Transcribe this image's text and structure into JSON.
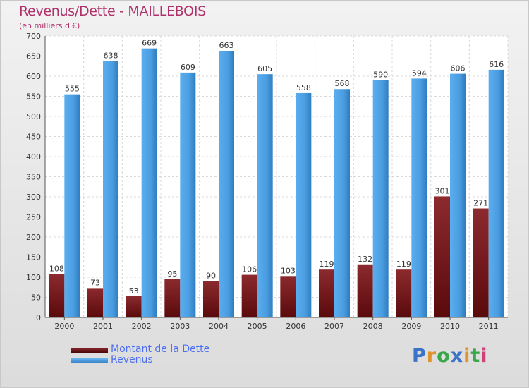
{
  "title": "Revenus/Dette - MAILLEBOIS",
  "subtitle": "(en milliers d'€)",
  "logo": {
    "text": "Proxiti",
    "colors": [
      "#3a73c8",
      "#e0922e",
      "#3aa84a",
      "#3a73c8",
      "#e0922e",
      "#3aa84a",
      "#d0407a"
    ]
  },
  "chart_data": {
    "type": "bar",
    "title": "Revenus/Dette - MAILLEBOIS",
    "subtitle": "(en milliers d'€)",
    "categories": [
      "2000",
      "2001",
      "2002",
      "2003",
      "2004",
      "2005",
      "2006",
      "2007",
      "2008",
      "2009",
      "2010",
      "2011"
    ],
    "series": [
      {
        "name": "Montant de la Dette",
        "color": "#7a1418",
        "values": [
          108,
          73,
          53,
          95,
          90,
          106,
          103,
          119,
          132,
          119,
          301,
          271
        ]
      },
      {
        "name": "Revenus",
        "color": "#4a9de0",
        "values": [
          555,
          638,
          669,
          609,
          663,
          605,
          558,
          568,
          590,
          594,
          606,
          616
        ]
      }
    ],
    "ylim": [
      0,
      700
    ],
    "yticks": [
      0,
      50,
      100,
      150,
      200,
      250,
      300,
      350,
      400,
      450,
      500,
      550,
      600,
      650,
      700
    ],
    "grid": true,
    "legend_position": "bottom-left"
  }
}
